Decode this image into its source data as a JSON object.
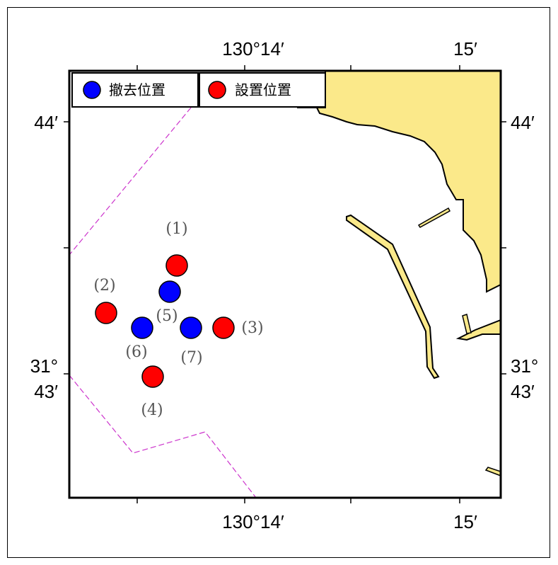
{
  "map": {
    "colors": {
      "land": "#fbe98a",
      "sea": "#ffffff",
      "removal": "#0000ff",
      "install": "#ff0000",
      "boundary": "#cc33cc",
      "frame": "#000000"
    },
    "ticks": {
      "top": [
        "130°14′",
        "15′"
      ],
      "bottom": [
        "130°14′",
        "15′"
      ],
      "left": [
        "44′",
        "31°",
        "43′"
      ],
      "right": [
        "44′",
        "31°",
        "43′"
      ]
    },
    "legend": [
      {
        "label": "撤去位置",
        "color": "#0000ff"
      },
      {
        "label": "設置位置",
        "color": "#ff0000"
      }
    ],
    "stations": [
      {
        "label": "(1)",
        "type": "install"
      },
      {
        "label": "(2)",
        "type": "install"
      },
      {
        "label": "(3)",
        "type": "install"
      },
      {
        "label": "(4)",
        "type": "install"
      },
      {
        "label": "(5)",
        "type": "removal"
      },
      {
        "label": "(6)",
        "type": "removal"
      },
      {
        "label": "(7)",
        "type": "removal"
      }
    ]
  }
}
